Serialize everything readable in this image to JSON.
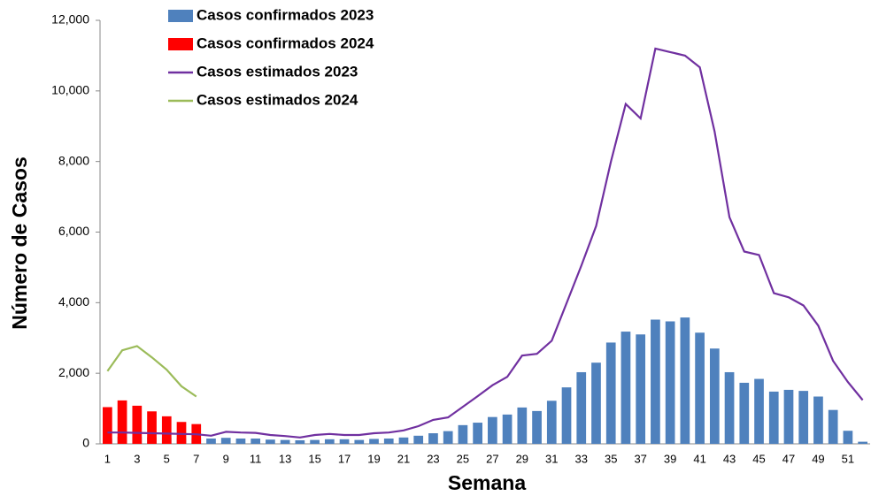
{
  "chart_data": {
    "type": "combo",
    "x_label": "Semana",
    "y_label": "Número de Casos",
    "categories": [
      1,
      null,
      3,
      null,
      5,
      null,
      7,
      null,
      9,
      null,
      11,
      null,
      13,
      null,
      15,
      null,
      17,
      null,
      19,
      null,
      21,
      null,
      23,
      null,
      25,
      null,
      27,
      null,
      29,
      null,
      31,
      null,
      33,
      null,
      35,
      null,
      37,
      null,
      39,
      null,
      41,
      null,
      43,
      null,
      45,
      null,
      47,
      null,
      49,
      null,
      51,
      null
    ],
    "ylim": [
      0,
      12000
    ],
    "yticks": [
      0,
      {
        "value": 2000,
        "label": "2,000"
      },
      {
        "value": 4000,
        "label": "4,000"
      },
      {
        "value": 6000,
        "label": "6,000"
      },
      {
        "value": 8000,
        "label": "8,000"
      },
      {
        "value": 10000,
        "label": "10,000"
      },
      {
        "value": 12000,
        "label": "12,000"
      }
    ],
    "series": [
      {
        "name": "Casos confirmados 2023",
        "type": "bar",
        "color": "#4f81bd",
        "values": [
          150,
          200,
          200,
          180,
          170,
          160,
          150,
          150,
          170,
          150,
          150,
          120,
          110,
          100,
          110,
          130,
          130,
          110,
          140,
          150,
          180,
          230,
          300,
          360,
          530,
          600,
          760,
          830,
          1030,
          930,
          1220,
          1600,
          2030,
          2300,
          2870,
          3180,
          3100,
          3520,
          3470,
          3580,
          3150,
          2700,
          2030,
          1730,
          1840,
          1480,
          1530,
          1500,
          1340,
          960,
          370,
          60
        ]
      },
      {
        "name": "Casos confirmados 2024",
        "type": "bar",
        "color": "#ff0000",
        "values": [
          1040,
          1230,
          1080,
          920,
          780,
          620,
          560,
          null,
          null,
          null,
          null,
          null,
          null,
          null,
          null,
          null,
          null,
          null,
          null,
          null,
          null,
          null,
          null,
          null,
          null,
          null,
          null,
          null,
          null,
          null,
          null,
          null,
          null,
          null,
          null,
          null,
          null,
          null,
          null,
          null,
          null,
          null,
          null,
          null,
          null,
          null,
          null,
          null,
          null,
          null,
          null,
          null
        ]
      },
      {
        "name": "Casos estimados 2023",
        "type": "line",
        "color": "#7030a0",
        "values": [
          320,
          320,
          310,
          300,
          290,
          280,
          270,
          230,
          340,
          320,
          310,
          250,
          220,
          180,
          250,
          280,
          250,
          250,
          300,
          320,
          380,
          500,
          680,
          750,
          1050,
          1350,
          1660,
          1900,
          2500,
          2550,
          2920,
          3980,
          5050,
          6175,
          8000,
          9630,
          9220,
          11200,
          11100,
          11000,
          10670,
          8850,
          6420,
          5450,
          5350,
          4270,
          4150,
          3920,
          3350,
          2350,
          1750,
          1240
        ]
      },
      {
        "name": "Casos estimados 2024",
        "type": "line",
        "color": "#9bbb59",
        "values": [
          2060,
          2650,
          2770,
          2450,
          2100,
          1630,
          1340,
          null,
          null,
          null,
          null,
          null,
          null,
          null,
          null,
          null,
          null,
          null,
          null,
          null,
          null,
          null,
          null,
          null,
          null,
          null,
          null,
          null,
          null,
          null,
          null,
          null,
          null,
          null,
          null,
          null,
          null,
          null,
          null,
          null,
          null,
          null,
          null,
          null,
          null,
          null,
          null,
          null,
          null,
          null,
          null,
          null
        ]
      }
    ]
  }
}
